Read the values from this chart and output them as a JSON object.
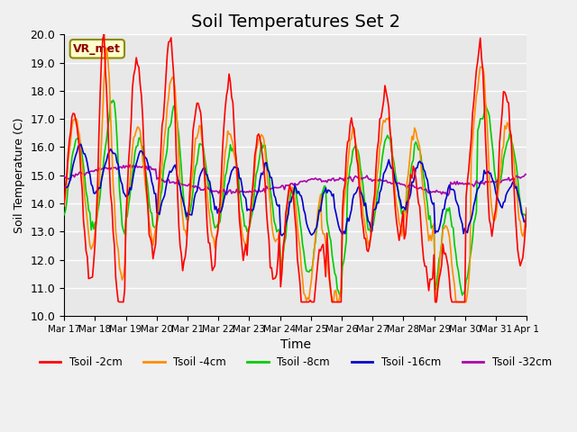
{
  "title": "Soil Temperatures Set 2",
  "xlabel": "Time",
  "ylabel": "Soil Temperature (C)",
  "ylim": [
    10.0,
    20.0
  ],
  "yticks": [
    10.0,
    11.0,
    12.0,
    13.0,
    14.0,
    15.0,
    16.0,
    17.0,
    18.0,
    19.0,
    20.0
  ],
  "xtick_labels": [
    "Mar 17",
    "Mar 18",
    "Mar 19",
    "Mar 20",
    "Mar 21",
    "Mar 22",
    "Mar 23",
    "Mar 24",
    "Mar 25",
    "Mar 26",
    "Mar 27",
    "Mar 28",
    "Mar 29",
    "Mar 30",
    "Mar 31",
    "Apr 1"
  ],
  "legend_labels": [
    "Tsoil -2cm",
    "Tsoil -4cm",
    "Tsoil -8cm",
    "Tsoil -16cm",
    "Tsoil -32cm"
  ],
  "line_colors": [
    "#FF0000",
    "#FF8C00",
    "#00CC00",
    "#0000CC",
    "#AA00AA"
  ],
  "annotation_text": "VR_met",
  "annotation_color": "#8B0000",
  "background_color": "#E8E8E8",
  "grid_color": "#FFFFFF",
  "title_fontsize": 14
}
